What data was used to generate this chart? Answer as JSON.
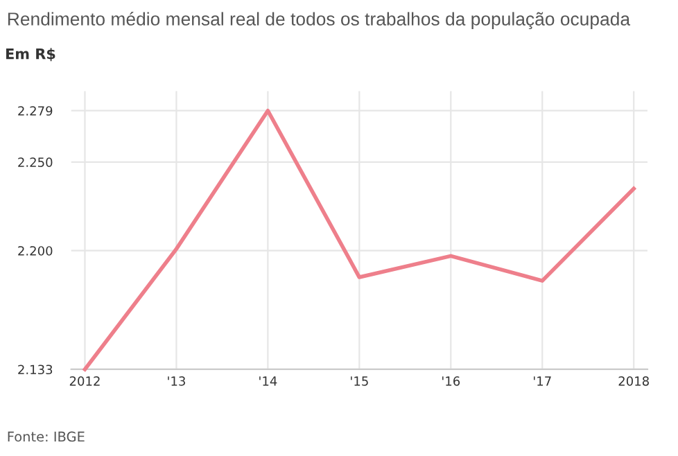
{
  "chart_data": {
    "type": "line",
    "title": "Rendimento médio mensal real de todos os trabalhos da população ocupada",
    "ylabel": "Em R$",
    "categories": [
      "2012",
      "'13",
      "'14",
      "'15",
      "'16",
      "'17",
      "2018"
    ],
    "series": [
      {
        "color": "#ee7f8b",
        "values": [
          2133,
          2201,
          2279,
          2185,
          2197,
          2183,
          2235
        ]
      }
    ],
    "ylim": [
      2133,
      2290
    ],
    "yticks": [
      {
        "value": 2133,
        "label": "2.133"
      },
      {
        "value": 2200,
        "label": "2.200"
      },
      {
        "value": 2250,
        "label": "2.250"
      },
      {
        "value": 2279,
        "label": "2.279"
      }
    ],
    "grid": true,
    "marker": "none",
    "line_style": "solid",
    "annotations": [
      "Fonte: IBGE"
    ]
  }
}
